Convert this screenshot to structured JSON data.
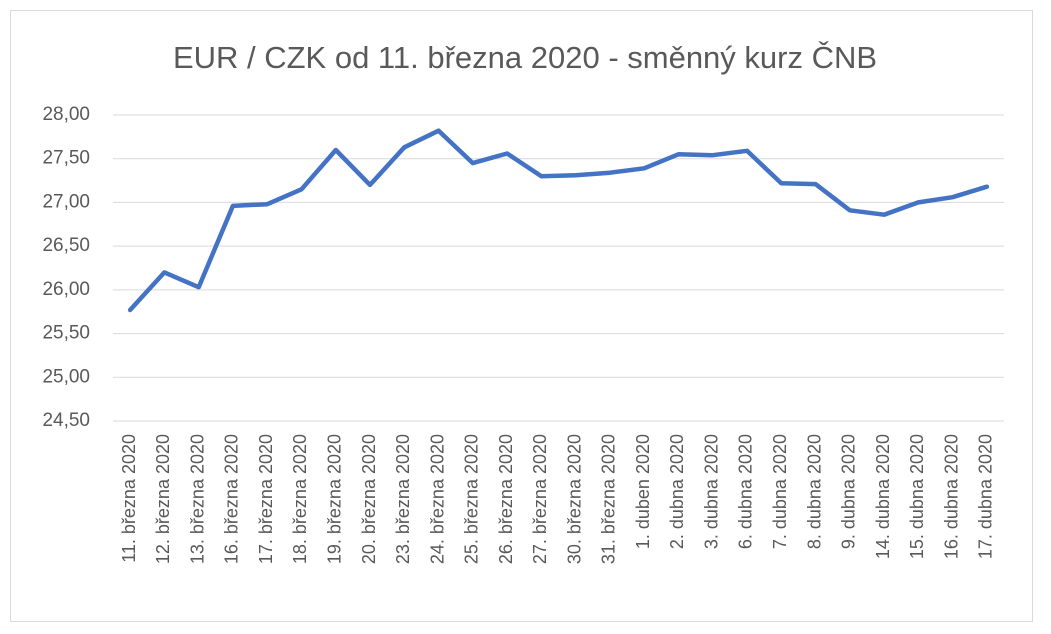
{
  "chart_data": {
    "type": "line",
    "title": "EUR / CZK od 11. března 2020 - směnný kurz ČNB",
    "categories": [
      "11. března 2020",
      "12. března 2020",
      "13. března 2020",
      "16. března 2020",
      "17. března 2020",
      "18. března 2020",
      "19. března 2020",
      "20. března 2020",
      "23. března 2020",
      "24. března 2020",
      "25. března 2020",
      "26. března 2020",
      "27. března 2020",
      "30. března 2020",
      "31. března 2020",
      "1. duben 2020",
      "2. dubna 2020",
      "3. dubna 2020",
      "6. dubna 2020",
      "7. dubna 2020",
      "8. dubna 2020",
      "9. dubna 2020",
      "14. dubna 2020",
      "15. dubna 2020",
      "16. dubna 2020",
      "17. dubna 2020"
    ],
    "values": [
      25.77,
      26.2,
      26.03,
      26.96,
      26.98,
      27.15,
      27.6,
      27.2,
      27.63,
      27.82,
      27.45,
      27.56,
      27.3,
      27.31,
      27.34,
      27.39,
      27.55,
      27.54,
      27.59,
      27.22,
      27.21,
      26.91,
      26.86,
      27.0,
      27.06,
      27.18
    ],
    "color": "#4472c4",
    "ylim": [
      24.5,
      28
    ],
    "yticks": [
      {
        "value": 24.5,
        "label": "24,50"
      },
      {
        "value": 25,
        "label": "25,00"
      },
      {
        "value": 25.5,
        "label": "25,50"
      },
      {
        "value": 26,
        "label": "26,00"
      },
      {
        "value": 26.5,
        "label": "26,50"
      },
      {
        "value": 27,
        "label": "27,00"
      },
      {
        "value": 27.5,
        "label": "27,50"
      },
      {
        "value": 28,
        "label": "28,00"
      }
    ],
    "grid": true
  }
}
